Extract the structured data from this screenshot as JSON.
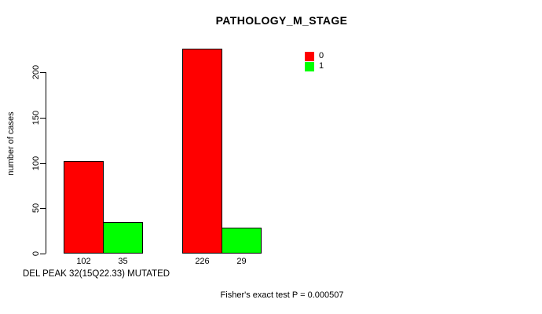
{
  "chart_data": {
    "type": "bar",
    "title": "PATHOLOGY_M_STAGE",
    "xlabel": "DEL PEAK 32(15Q22.33) MUTATED",
    "ylabel": "number of cases",
    "series": [
      {
        "name": "0",
        "color": "#ff0000",
        "values": [
          102,
          226
        ]
      },
      {
        "name": "1",
        "color": "#00ff00",
        "values": [
          35,
          29
        ]
      }
    ],
    "bar_value_labels": [
      [
        "102",
        "35"
      ],
      [
        "226",
        "29"
      ]
    ],
    "y_axis": {
      "ticks": [
        0,
        50,
        100,
        150,
        200
      ],
      "max_tick": 200
    },
    "ylim": [
      0,
      230
    ],
    "grid": false,
    "legend": {
      "position": "top-right",
      "entries": [
        "0",
        "1"
      ]
    },
    "annotation": "Fisher's exact test P = 0.000507",
    "colors": {
      "bar_border": "#000000",
      "axis": "#000000",
      "text": "#000000",
      "background": "#ffffff"
    }
  }
}
